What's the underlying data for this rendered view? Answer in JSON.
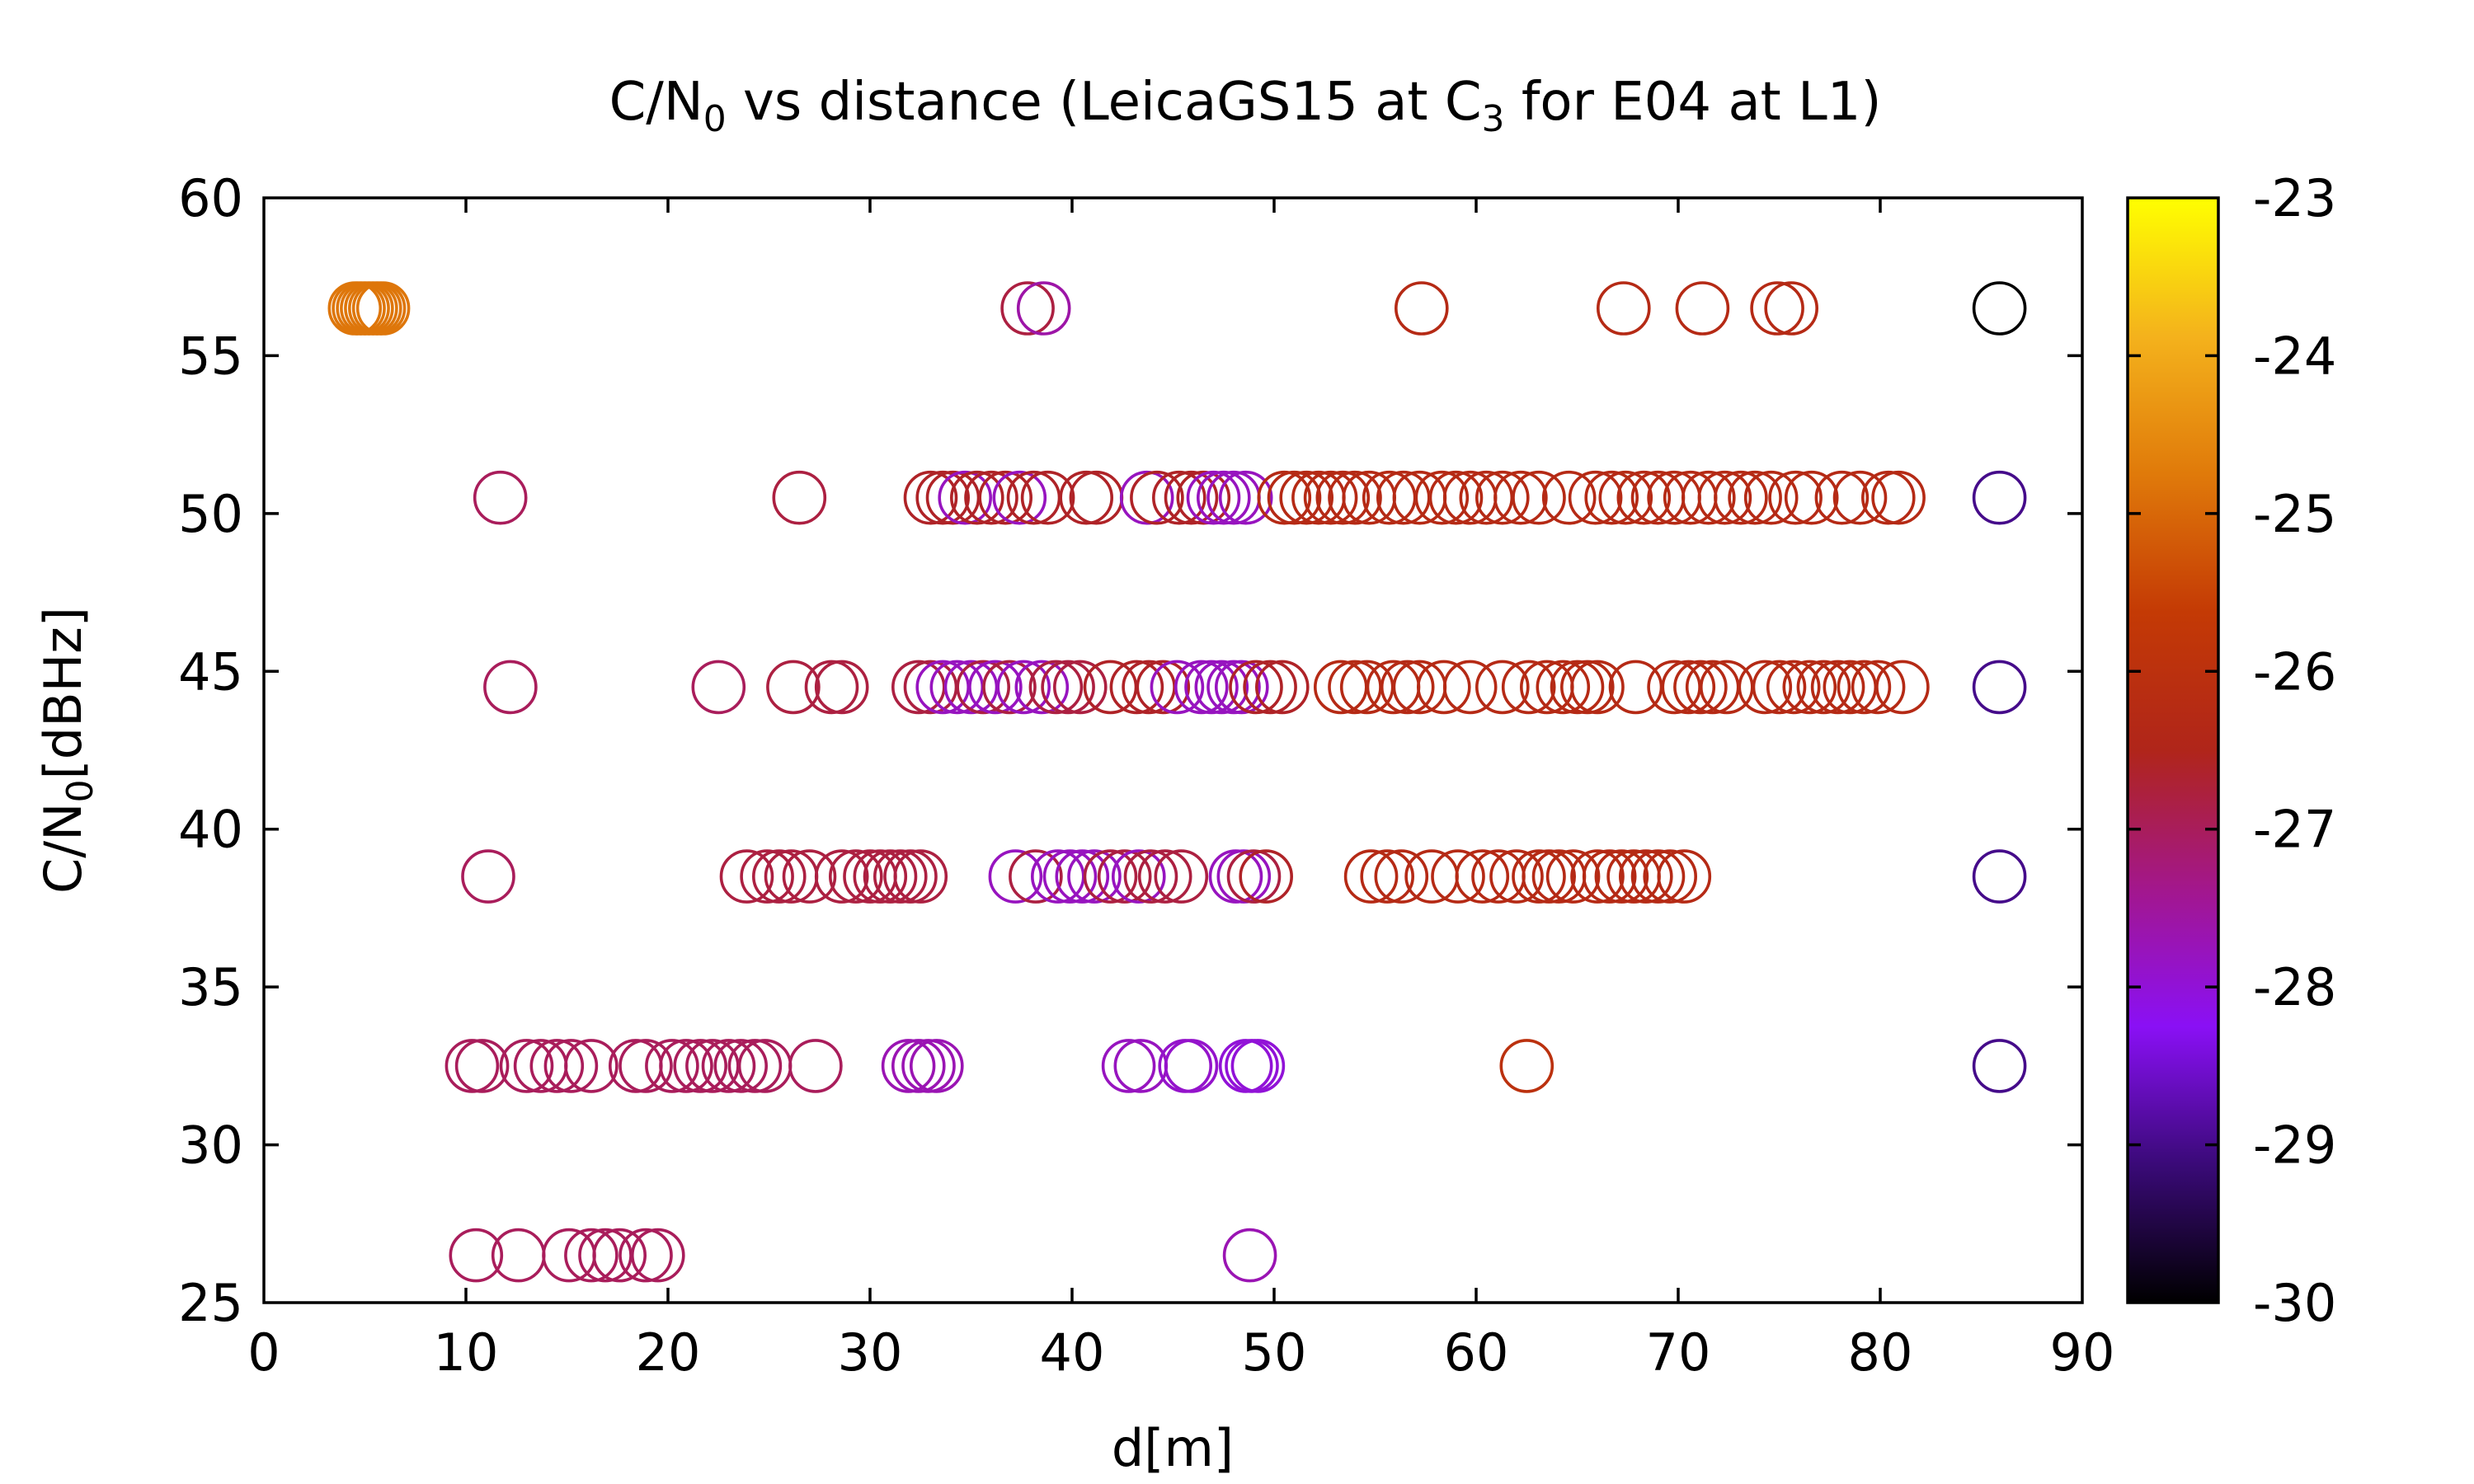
{
  "chart_data": {
    "type": "scatter",
    "title": "C/N0 vs distance (LeicaGS15 at C3 for E04 at L1)",
    "title_parts": {
      "a": "C/N",
      "a_sub": "0",
      "b": " vs distance (LeicaGS15 at C",
      "b_sub": "3",
      "c": " for E04 at L1)"
    },
    "xlabel": "d[m]",
    "ylabel_parts": {
      "a": "C/N",
      "a_sub": "0",
      "b": "[dBHz]"
    },
    "xlim": [
      0,
      90
    ],
    "ylim": [
      25,
      60
    ],
    "xticks": [
      "0",
      "10",
      "20",
      "30",
      "40",
      "50",
      "60",
      "70",
      "80",
      "90"
    ],
    "yticks": [
      "25",
      "30",
      "35",
      "40",
      "45",
      "50",
      "55",
      "60"
    ],
    "colorbar": {
      "range": [
        -30,
        -23
      ],
      "ticks": [
        "-30",
        "-29",
        "-28",
        "-27",
        "-26",
        "-25",
        "-24",
        "-23"
      ],
      "palette": [
        "#000000",
        "#3a0a78",
        "#8a10f5",
        "#a3178c",
        "#b0251a",
        "#c43a05",
        "#e07a0a",
        "#f4b21c",
        "#ffff00"
      ]
    },
    "grid": false,
    "legend": "none",
    "rows": [
      {
        "y": 26.5,
        "points": [
          [
            10.5,
            -27.0
          ],
          [
            12.6,
            -27.0
          ],
          [
            15.1,
            -27.0
          ],
          [
            16.2,
            -27.0
          ],
          [
            16.9,
            -27.0
          ],
          [
            17.6,
            -27.0
          ],
          [
            18.9,
            -27.0
          ],
          [
            19.5,
            -27.0
          ],
          [
            48.8,
            -27.7
          ]
        ]
      },
      {
        "y": 32.5,
        "points": [
          [
            10.3,
            -27.0
          ],
          [
            10.8,
            -27.0
          ],
          [
            13.0,
            -27.0
          ],
          [
            13.7,
            -27.0
          ],
          [
            14.5,
            -27.0
          ],
          [
            15.2,
            -27.0
          ],
          [
            16.2,
            -27.0
          ],
          [
            18.4,
            -27.0
          ],
          [
            18.9,
            -27.0
          ],
          [
            20.2,
            -27.0
          ],
          [
            20.9,
            -27.0
          ],
          [
            21.6,
            -27.0
          ],
          [
            22.2,
            -27.0
          ],
          [
            23.0,
            -27.0
          ],
          [
            23.6,
            -27.0
          ],
          [
            24.3,
            -27.0
          ],
          [
            24.8,
            -27.0
          ],
          [
            27.3,
            -27.0
          ],
          [
            31.9,
            -27.7
          ],
          [
            32.4,
            -27.7
          ],
          [
            32.9,
            -27.7
          ],
          [
            33.3,
            -27.7
          ],
          [
            42.8,
            -27.8
          ],
          [
            43.4,
            -27.8
          ],
          [
            45.6,
            -27.9
          ],
          [
            45.9,
            -27.9
          ],
          [
            48.6,
            -28.0
          ],
          [
            48.9,
            -28.0
          ],
          [
            49.2,
            -28.0
          ],
          [
            62.5,
            -26.0
          ],
          [
            85.9,
            -29.0
          ]
        ]
      },
      {
        "y": 38.5,
        "points": [
          [
            11.1,
            -27.0
          ],
          [
            23.9,
            -26.8
          ],
          [
            24.9,
            -26.8
          ],
          [
            25.5,
            -26.8
          ],
          [
            26.1,
            -26.8
          ],
          [
            27.0,
            -26.8
          ],
          [
            28.6,
            -26.8
          ],
          [
            29.3,
            -26.8
          ],
          [
            30.0,
            -26.8
          ],
          [
            30.5,
            -26.8
          ],
          [
            31.0,
            -26.8
          ],
          [
            31.5,
            -26.8
          ],
          [
            32.0,
            -26.8
          ],
          [
            32.5,
            -26.8
          ],
          [
            37.2,
            -27.8
          ],
          [
            38.2,
            -26.8
          ],
          [
            39.3,
            -27.8
          ],
          [
            39.9,
            -27.8
          ],
          [
            40.5,
            -27.8
          ],
          [
            41.1,
            -27.8
          ],
          [
            41.9,
            -26.8
          ],
          [
            42.6,
            -26.8
          ],
          [
            43.3,
            -27.8
          ],
          [
            43.9,
            -26.8
          ],
          [
            44.6,
            -26.8
          ],
          [
            45.4,
            -26.8
          ],
          [
            48.1,
            -27.8
          ],
          [
            48.5,
            -27.8
          ],
          [
            49.0,
            -26.8
          ],
          [
            49.6,
            -26.6
          ],
          [
            54.8,
            -26.3
          ],
          [
            55.6,
            -26.3
          ],
          [
            56.3,
            -26.3
          ],
          [
            57.8,
            -26.3
          ],
          [
            59.1,
            -26.3
          ],
          [
            60.3,
            -26.3
          ],
          [
            61.1,
            -26.3
          ],
          [
            62.0,
            -26.3
          ],
          [
            63.1,
            -26.3
          ],
          [
            63.6,
            -26.3
          ],
          [
            64.1,
            -26.3
          ],
          [
            64.8,
            -26.3
          ],
          [
            66.0,
            -26.3
          ],
          [
            66.6,
            -26.3
          ],
          [
            67.2,
            -26.3
          ],
          [
            67.8,
            -26.3
          ],
          [
            68.4,
            -26.3
          ],
          [
            69.0,
            -26.3
          ],
          [
            69.6,
            -26.3
          ],
          [
            70.3,
            -26.3
          ],
          [
            85.9,
            -29.0
          ]
        ]
      },
      {
        "y": 44.5,
        "points": [
          [
            12.2,
            -27.0
          ],
          [
            22.5,
            -27.0
          ],
          [
            26.2,
            -26.8
          ],
          [
            28.1,
            -26.8
          ],
          [
            28.6,
            -26.8
          ],
          [
            32.4,
            -26.8
          ],
          [
            33.0,
            -26.8
          ],
          [
            33.6,
            -27.8
          ],
          [
            34.3,
            -27.8
          ],
          [
            35.0,
            -27.8
          ],
          [
            35.6,
            -26.8
          ],
          [
            36.2,
            -27.8
          ],
          [
            36.9,
            -26.8
          ],
          [
            37.6,
            -27.8
          ],
          [
            38.5,
            -27.8
          ],
          [
            39.2,
            -26.8
          ],
          [
            39.8,
            -26.8
          ],
          [
            40.4,
            -26.8
          ],
          [
            41.9,
            -26.6
          ],
          [
            43.2,
            -26.6
          ],
          [
            43.8,
            -26.6
          ],
          [
            44.5,
            -26.6
          ],
          [
            45.2,
            -27.8
          ],
          [
            46.4,
            -27.8
          ],
          [
            46.9,
            -27.8
          ],
          [
            47.4,
            -27.8
          ],
          [
            48.0,
            -27.8
          ],
          [
            48.4,
            -27.8
          ],
          [
            49.1,
            -26.6
          ],
          [
            49.8,
            -26.6
          ],
          [
            50.4,
            -26.6
          ],
          [
            53.3,
            -26.3
          ],
          [
            54.0,
            -26.3
          ],
          [
            54.6,
            -26.3
          ],
          [
            55.9,
            -26.3
          ],
          [
            56.6,
            -26.3
          ],
          [
            57.2,
            -26.3
          ],
          [
            58.4,
            -26.3
          ],
          [
            59.7,
            -26.3
          ],
          [
            61.3,
            -26.3
          ],
          [
            62.6,
            -26.3
          ],
          [
            63.5,
            -26.3
          ],
          [
            64.3,
            -26.3
          ],
          [
            65.0,
            -26.3
          ],
          [
            65.5,
            -26.3
          ],
          [
            66.0,
            -26.3
          ],
          [
            67.9,
            -26.3
          ],
          [
            69.8,
            -26.3
          ],
          [
            70.5,
            -26.3
          ],
          [
            71.1,
            -26.3
          ],
          [
            71.7,
            -26.3
          ],
          [
            72.4,
            -26.3
          ],
          [
            74.3,
            -26.3
          ],
          [
            75.0,
            -26.3
          ],
          [
            75.7,
            -26.3
          ],
          [
            76.5,
            -26.3
          ],
          [
            77.2,
            -26.3
          ],
          [
            77.9,
            -26.3
          ],
          [
            78.5,
            -26.3
          ],
          [
            79.2,
            -26.3
          ],
          [
            79.9,
            -26.3
          ],
          [
            81.1,
            -26.3
          ],
          [
            85.9,
            -29.0
          ]
        ]
      },
      {
        "y": 50.5,
        "points": [
          [
            11.7,
            -27.0
          ],
          [
            26.5,
            -26.8
          ],
          [
            33.0,
            -26.6
          ],
          [
            33.6,
            -26.6
          ],
          [
            34.1,
            -26.6
          ],
          [
            34.7,
            -27.8
          ],
          [
            35.3,
            -26.6
          ],
          [
            36.0,
            -26.6
          ],
          [
            36.7,
            -26.6
          ],
          [
            37.4,
            -27.8
          ],
          [
            38.1,
            -26.6
          ],
          [
            38.8,
            -26.6
          ],
          [
            40.7,
            -26.6
          ],
          [
            41.2,
            -26.6
          ],
          [
            43.7,
            -27.8
          ],
          [
            44.2,
            -26.6
          ],
          [
            45.3,
            -26.6
          ],
          [
            45.9,
            -26.6
          ],
          [
            46.5,
            -26.6
          ],
          [
            47.0,
            -27.8
          ],
          [
            47.5,
            -27.8
          ],
          [
            48.0,
            -27.8
          ],
          [
            48.6,
            -27.8
          ],
          [
            50.5,
            -26.3
          ],
          [
            51.0,
            -26.3
          ],
          [
            51.6,
            -26.3
          ],
          [
            52.2,
            -26.3
          ],
          [
            52.8,
            -26.3
          ],
          [
            53.4,
            -26.3
          ],
          [
            54.0,
            -26.3
          ],
          [
            54.7,
            -26.3
          ],
          [
            55.7,
            -26.3
          ],
          [
            56.4,
            -26.3
          ],
          [
            57.2,
            -26.3
          ],
          [
            58.3,
            -26.3
          ],
          [
            59.0,
            -26.3
          ],
          [
            59.7,
            -26.3
          ],
          [
            60.5,
            -26.3
          ],
          [
            61.3,
            -26.3
          ],
          [
            62.2,
            -26.3
          ],
          [
            63.1,
            -26.3
          ],
          [
            64.6,
            -26.3
          ],
          [
            65.9,
            -26.3
          ],
          [
            66.7,
            -26.3
          ],
          [
            67.4,
            -26.3
          ],
          [
            68.3,
            -26.3
          ],
          [
            69.0,
            -26.3
          ],
          [
            69.8,
            -26.3
          ],
          [
            70.6,
            -26.3
          ],
          [
            71.5,
            -26.3
          ],
          [
            72.3,
            -26.3
          ],
          [
            73.1,
            -26.3
          ],
          [
            73.8,
            -26.3
          ],
          [
            74.6,
            -26.3
          ],
          [
            75.8,
            -26.3
          ],
          [
            76.6,
            -26.3
          ],
          [
            78.1,
            -26.3
          ],
          [
            79.0,
            -26.3
          ],
          [
            80.4,
            -26.3
          ],
          [
            80.9,
            -26.3
          ],
          [
            85.9,
            -29.0
          ]
        ]
      },
      {
        "y": 56.5,
        "points": [
          [
            4.5,
            -24.8
          ],
          [
            4.7,
            -24.8
          ],
          [
            4.9,
            -24.8
          ],
          [
            5.1,
            -24.8
          ],
          [
            5.3,
            -24.8
          ],
          [
            5.5,
            -24.8
          ],
          [
            5.7,
            -24.8
          ],
          [
            5.9,
            -24.8
          ],
          [
            37.8,
            -26.8
          ],
          [
            38.6,
            -27.6
          ],
          [
            57.3,
            -26.3
          ],
          [
            67.3,
            -26.3
          ],
          [
            71.2,
            -26.3
          ],
          [
            74.9,
            -26.3
          ],
          [
            75.6,
            -26.3
          ],
          [
            85.9,
            -30.0
          ]
        ]
      }
    ]
  }
}
